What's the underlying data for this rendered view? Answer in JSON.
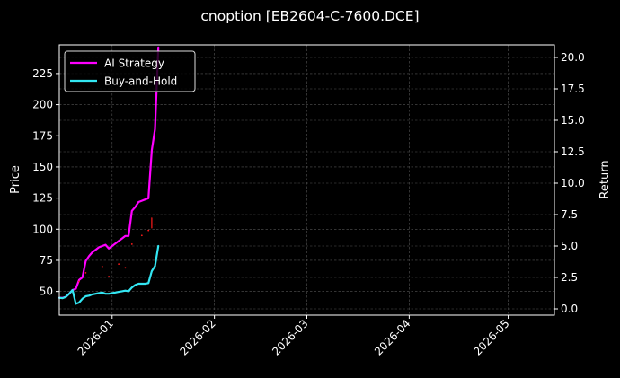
{
  "chart_data": {
    "type": "line",
    "title": "cnoption [EB2604-C-7600.DCE]",
    "ylabel": "Price",
    "y2label": "Return",
    "xlim": [
      "2025-12-16",
      "2026-05-15"
    ],
    "ylim": [
      31,
      248
    ],
    "y2lim": [
      -0.5,
      21
    ],
    "x_ticks": [
      "2026-01-01",
      "2026-02-01",
      "2026-03-01",
      "2026-04-01",
      "2026-05-01"
    ],
    "x_tick_labels": [
      "2026-01",
      "2026-02",
      "2026-03",
      "2026-04",
      "2026-05"
    ],
    "y_ticks": [
      50,
      75,
      100,
      125,
      150,
      175,
      200,
      225
    ],
    "y2_ticks": [
      0.0,
      2.5,
      5.0,
      7.5,
      10.0,
      12.5,
      15.0,
      17.5,
      20.0
    ],
    "y2_tick_labels": [
      "0.0",
      "2.5",
      "5.0",
      "7.5",
      "10.0",
      "12.5",
      "15.0",
      "17.5",
      "20.0"
    ],
    "grid": true,
    "legend_position": "top-left",
    "series": [
      {
        "name": "AI Strategy",
        "axis": "right",
        "color": "#ff00ff",
        "points": [
          [
            "2025-12-16",
            0.88
          ],
          [
            "2025-12-17",
            0.88
          ],
          [
            "2025-12-18",
            0.95
          ],
          [
            "2025-12-19",
            1.2
          ],
          [
            "2025-12-20",
            1.5
          ],
          [
            "2025-12-21",
            1.6
          ],
          [
            "2025-12-22",
            2.3
          ],
          [
            "2025-12-23",
            2.5
          ],
          [
            "2025-12-24",
            3.8
          ],
          [
            "2025-12-25",
            4.2
          ],
          [
            "2025-12-26",
            4.5
          ],
          [
            "2025-12-27",
            4.7
          ],
          [
            "2025-12-28",
            4.9
          ],
          [
            "2025-12-29",
            5.0
          ],
          [
            "2025-12-30",
            5.1
          ],
          [
            "2025-12-31",
            4.8
          ],
          [
            "2026-01-01",
            5.0
          ],
          [
            "2026-01-02",
            5.2
          ],
          [
            "2026-01-03",
            5.4
          ],
          [
            "2026-01-04",
            5.6
          ],
          [
            "2026-01-05",
            5.8
          ],
          [
            "2026-01-06",
            5.8
          ],
          [
            "2026-01-07",
            7.8
          ],
          [
            "2026-01-08",
            8.1
          ],
          [
            "2026-01-09",
            8.5
          ],
          [
            "2026-01-10",
            8.6
          ],
          [
            "2026-01-11",
            8.7
          ],
          [
            "2026-01-12",
            8.8
          ],
          [
            "2026-01-13",
            12.6
          ],
          [
            "2026-01-14",
            14.3
          ],
          [
            "2026-01-15",
            20.8
          ]
        ]
      },
      {
        "name": "Buy-and-Hold",
        "axis": "right",
        "color": "#33e6f2",
        "points": [
          [
            "2025-12-16",
            0.88
          ],
          [
            "2025-12-17",
            0.85
          ],
          [
            "2025-12-18",
            0.95
          ],
          [
            "2025-12-19",
            1.2
          ],
          [
            "2025-12-20",
            1.5
          ],
          [
            "2025-12-21",
            0.4
          ],
          [
            "2025-12-22",
            0.5
          ],
          [
            "2025-12-23",
            0.8
          ],
          [
            "2025-12-24",
            1.0
          ],
          [
            "2025-12-25",
            1.05
          ],
          [
            "2025-12-26",
            1.15
          ],
          [
            "2025-12-27",
            1.2
          ],
          [
            "2025-12-28",
            1.25
          ],
          [
            "2025-12-29",
            1.3
          ],
          [
            "2025-12-30",
            1.2
          ],
          [
            "2025-12-31",
            1.2
          ],
          [
            "2026-01-01",
            1.25
          ],
          [
            "2026-01-02",
            1.3
          ],
          [
            "2026-01-03",
            1.35
          ],
          [
            "2026-01-04",
            1.4
          ],
          [
            "2026-01-05",
            1.45
          ],
          [
            "2026-01-06",
            1.4
          ],
          [
            "2026-01-07",
            1.7
          ],
          [
            "2026-01-08",
            1.9
          ],
          [
            "2026-01-09",
            2.0
          ],
          [
            "2026-01-10",
            2.0
          ],
          [
            "2026-01-11",
            2.0
          ],
          [
            "2026-01-12",
            2.05
          ],
          [
            "2026-01-13",
            3.0
          ],
          [
            "2026-01-14",
            3.4
          ],
          [
            "2026-01-15",
            5.0
          ]
        ]
      },
      {
        "name": "",
        "axis": "left",
        "color": "#ff1a1a",
        "style": "scatter",
        "points": [
          [
            "2025-12-22",
            58
          ],
          [
            "2025-12-24",
            65
          ],
          [
            "2025-12-29",
            70
          ],
          [
            "2025-12-31",
            62
          ],
          [
            "2026-01-03",
            72
          ],
          [
            "2026-01-05",
            69
          ],
          [
            "2026-01-07",
            88
          ],
          [
            "2026-01-10",
            95
          ],
          [
            "2026-01-12",
            99
          ],
          [
            "2026-01-14",
            104
          ]
        ]
      },
      {
        "name": "",
        "axis": "left",
        "color": "#ff1a1a",
        "style": "line",
        "points": [
          [
            "2026-01-13",
            101
          ],
          [
            "2026-01-13",
            109
          ]
        ]
      }
    ]
  }
}
